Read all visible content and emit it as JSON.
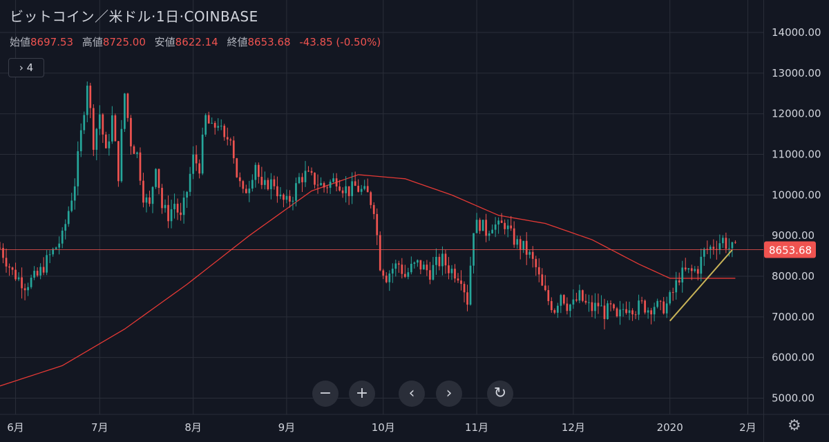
{
  "header": {
    "symbol": "ビットコイン／米ドル",
    "interval": "1日",
    "exchange": "COINBASE"
  },
  "ohlc": {
    "open_label": "始値",
    "open": "8697.53",
    "high_label": "高値",
    "high": "8725.00",
    "low_label": "安値",
    "low": "8622.14",
    "close_label": "終値",
    "close": "8653.68",
    "change": "-43.85 (-0.50%)"
  },
  "indicators_button": "› 4",
  "controls": {
    "zoom_out": "−",
    "zoom_in": "+",
    "prev": "‹",
    "next": "›",
    "reset": "↻"
  },
  "settings_icon": "gear-icon",
  "colors": {
    "up": "#26a69a",
    "down": "#ef5350",
    "ma": "#e53935",
    "trend": "#c9b458",
    "bg": "#131722",
    "grid": "#2a2e39"
  },
  "chart_data": {
    "type": "candlestick",
    "title": "ビットコイン／米ドル 1日 COINBASE",
    "y_axis": {
      "ticks": [
        5000,
        6000,
        7000,
        8000,
        9000,
        10000,
        11000,
        12000,
        13000,
        14000
      ],
      "tick_labels": [
        "5000.00",
        "6000.00",
        "7000.00",
        "8000.00",
        "9000.00",
        "10000.00",
        "11000.00",
        "12000.00",
        "13000.00",
        "14000.00"
      ],
      "ylim": [
        4600,
        14800
      ]
    },
    "x_axis": {
      "labels": [
        "6月",
        "7月",
        "8月",
        "9月",
        "10月",
        "11月",
        "12月",
        "2020",
        "2月"
      ],
      "xlim_days": [
        0,
        245
      ]
    },
    "last_price": 8653.68,
    "last_price_label": "8653.68",
    "close_path": [
      [
        0,
        8700
      ],
      [
        4,
        8100
      ],
      [
        8,
        7800
      ],
      [
        12,
        8000
      ],
      [
        16,
        8500
      ],
      [
        20,
        8950
      ],
      [
        24,
        10300
      ],
      [
        26,
        11500
      ],
      [
        28,
        12800
      ],
      [
        30,
        11300
      ],
      [
        32,
        12000
      ],
      [
        34,
        11000
      ],
      [
        36,
        11900
      ],
      [
        38,
        10500
      ],
      [
        40,
        12500
      ],
      [
        42,
        11300
      ],
      [
        44,
        11000
      ],
      [
        46,
        10000
      ],
      [
        48,
        9700
      ],
      [
        50,
        10800
      ],
      [
        52,
        9700
      ],
      [
        54,
        9500
      ],
      [
        56,
        9800
      ],
      [
        58,
        9400
      ],
      [
        60,
        10100
      ],
      [
        62,
        10900
      ],
      [
        64,
        10700
      ],
      [
        66,
        11900
      ],
      [
        68,
        11600
      ],
      [
        70,
        11800
      ],
      [
        72,
        11300
      ],
      [
        74,
        11500
      ],
      [
        76,
        10500
      ],
      [
        78,
        10000
      ],
      [
        80,
        10300
      ],
      [
        82,
        10800
      ],
      [
        84,
        10100
      ],
      [
        86,
        10300
      ],
      [
        88,
        10300
      ],
      [
        90,
        9900
      ],
      [
        92,
        9800
      ],
      [
        94,
        10000
      ],
      [
        96,
        10400
      ],
      [
        98,
        10500
      ],
      [
        100,
        10400
      ],
      [
        102,
        10300
      ],
      [
        104,
        10200
      ],
      [
        106,
        10300
      ],
      [
        108,
        10400
      ],
      [
        110,
        10200
      ],
      [
        112,
        10100
      ],
      [
        114,
        10200
      ],
      [
        116,
        10100
      ],
      [
        118,
        10000
      ],
      [
        120,
        9700
      ],
      [
        122,
        8300
      ],
      [
        124,
        8000
      ],
      [
        126,
        8200
      ],
      [
        128,
        8300
      ],
      [
        130,
        8000
      ],
      [
        132,
        8200
      ],
      [
        134,
        8300
      ],
      [
        136,
        8200
      ],
      [
        138,
        8100
      ],
      [
        140,
        8300
      ],
      [
        142,
        8400
      ],
      [
        144,
        8200
      ],
      [
        146,
        8100
      ],
      [
        148,
        8000
      ],
      [
        150,
        7400
      ],
      [
        152,
        9200
      ],
      [
        154,
        9300
      ],
      [
        156,
        9100
      ],
      [
        158,
        9300
      ],
      [
        160,
        9200
      ],
      [
        162,
        9300
      ],
      [
        164,
        9000
      ],
      [
        166,
        8800
      ],
      [
        168,
        8700
      ],
      [
        170,
        8500
      ],
      [
        172,
        8200
      ],
      [
        174,
        7700
      ],
      [
        176,
        7400
      ],
      [
        178,
        7200
      ],
      [
        180,
        7600
      ],
      [
        182,
        7300
      ],
      [
        184,
        7300
      ],
      [
        186,
        7500
      ],
      [
        188,
        7300
      ],
      [
        190,
        7200
      ],
      [
        192,
        7300
      ],
      [
        194,
        7100
      ],
      [
        196,
        7200
      ],
      [
        198,
        6900
      ],
      [
        200,
        7200
      ],
      [
        202,
        7300
      ],
      [
        204,
        7200
      ],
      [
        206,
        7300
      ],
      [
        208,
        7200
      ],
      [
        210,
        7300
      ],
      [
        212,
        7200
      ],
      [
        214,
        7300
      ],
      [
        216,
        7600
      ],
      [
        218,
        8000
      ],
      [
        220,
        8100
      ],
      [
        222,
        8100
      ],
      [
        224,
        8200
      ],
      [
        226,
        8600
      ],
      [
        228,
        8700
      ],
      [
        230,
        8800
      ],
      [
        232,
        8900
      ],
      [
        234,
        8700
      ],
      [
        236,
        8650
      ]
    ],
    "series": [
      {
        "name": "MA200",
        "type": "line",
        "points": [
          [
            0,
            5300
          ],
          [
            20,
            5800
          ],
          [
            40,
            6700
          ],
          [
            60,
            7800
          ],
          [
            80,
            9000
          ],
          [
            100,
            10100
          ],
          [
            115,
            10500
          ],
          [
            130,
            10400
          ],
          [
            145,
            10000
          ],
          [
            160,
            9500
          ],
          [
            175,
            9300
          ],
          [
            190,
            8900
          ],
          [
            205,
            8300
          ],
          [
            215,
            7950
          ],
          [
            225,
            7950
          ],
          [
            236,
            7950
          ]
        ]
      },
      {
        "name": "trendline",
        "type": "line",
        "points": [
          [
            215,
            6900
          ],
          [
            235,
            8650
          ]
        ]
      }
    ]
  }
}
